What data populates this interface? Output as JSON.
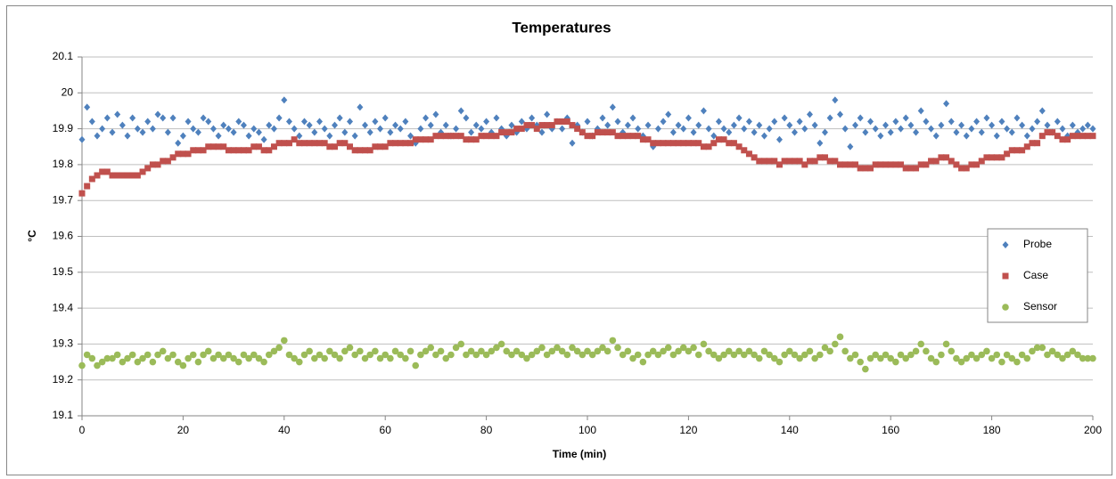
{
  "chart_data": {
    "type": "scatter",
    "title": "Temperatures",
    "x_label": "Time (min)",
    "y_label": "°C",
    "xlim": [
      0,
      200
    ],
    "xticks": [
      0,
      20,
      40,
      60,
      80,
      100,
      120,
      140,
      160,
      180,
      200
    ],
    "ylim": [
      19.1,
      20.1
    ],
    "yticks": [
      19.1,
      19.2,
      19.3,
      19.4,
      19.5,
      19.6,
      19.7,
      19.8,
      19.9,
      20,
      20.1
    ],
    "grid": true,
    "legend": "right",
    "x": [
      0,
      1,
      2,
      3,
      4,
      5,
      6,
      7,
      8,
      9,
      10,
      11,
      12,
      13,
      14,
      15,
      16,
      17,
      18,
      19,
      20,
      21,
      22,
      23,
      24,
      25,
      26,
      27,
      28,
      29,
      30,
      31,
      32,
      33,
      34,
      35,
      36,
      37,
      38,
      39,
      40,
      41,
      42,
      43,
      44,
      45,
      46,
      47,
      48,
      49,
      50,
      51,
      52,
      53,
      54,
      55,
      56,
      57,
      58,
      59,
      60,
      61,
      62,
      63,
      64,
      65,
      66,
      67,
      68,
      69,
      70,
      71,
      72,
      73,
      74,
      75,
      76,
      77,
      78,
      79,
      80,
      81,
      82,
      83,
      84,
      85,
      86,
      87,
      88,
      89,
      90,
      91,
      92,
      93,
      94,
      95,
      96,
      97,
      98,
      99,
      100,
      101,
      102,
      103,
      104,
      105,
      106,
      107,
      108,
      109,
      110,
      111,
      112,
      113,
      114,
      115,
      116,
      117,
      118,
      119,
      120,
      121,
      122,
      123,
      124,
      125,
      126,
      127,
      128,
      129,
      130,
      131,
      132,
      133,
      134,
      135,
      136,
      137,
      138,
      139,
      140,
      141,
      142,
      143,
      144,
      145,
      146,
      147,
      148,
      149,
      150,
      151,
      152,
      153,
      154,
      155,
      156,
      157,
      158,
      159,
      160,
      161,
      162,
      163,
      164,
      165,
      166,
      167,
      168,
      169,
      170,
      171,
      172,
      173,
      174,
      175,
      176,
      177,
      178,
      179,
      180,
      181,
      182,
      183,
      184,
      185,
      186,
      187,
      188,
      189,
      190,
      191,
      192,
      193,
      194,
      195,
      196,
      197,
      198,
      199,
      200
    ],
    "series": [
      {
        "name": "Probe",
        "color": "#4f81bd",
        "marker": "diamond",
        "values": [
          19.87,
          19.96,
          19.92,
          19.88,
          19.9,
          19.93,
          19.89,
          19.94,
          19.91,
          19.88,
          19.93,
          19.9,
          19.89,
          19.92,
          19.9,
          19.94,
          19.93,
          19.89,
          19.93,
          19.86,
          19.88,
          19.92,
          19.9,
          19.89,
          19.93,
          19.92,
          19.9,
          19.88,
          19.91,
          19.9,
          19.89,
          19.92,
          19.91,
          19.88,
          19.9,
          19.89,
          19.87,
          19.91,
          19.9,
          19.93,
          19.98,
          19.92,
          19.9,
          19.88,
          19.92,
          19.91,
          19.89,
          19.92,
          19.9,
          19.88,
          19.91,
          19.93,
          19.89,
          19.92,
          19.88,
          19.96,
          19.91,
          19.89,
          19.92,
          19.9,
          19.93,
          19.89,
          19.91,
          19.9,
          19.92,
          19.88,
          19.86,
          19.9,
          19.93,
          19.91,
          19.94,
          19.89,
          19.91,
          19.88,
          19.9,
          19.95,
          19.93,
          19.89,
          19.91,
          19.9,
          19.92,
          19.89,
          19.93,
          19.9,
          19.88,
          19.91,
          19.89,
          19.92,
          19.9,
          19.93,
          19.91,
          19.89,
          19.94,
          19.9,
          19.92,
          19.9,
          19.93,
          19.86,
          19.91,
          19.89,
          19.92,
          19.88,
          19.9,
          19.93,
          19.91,
          19.96,
          19.92,
          19.89,
          19.91,
          19.93,
          19.9,
          19.88,
          19.91,
          19.85,
          19.9,
          19.92,
          19.94,
          19.89,
          19.91,
          19.9,
          19.93,
          19.89,
          19.91,
          19.95,
          19.9,
          19.88,
          19.92,
          19.9,
          19.89,
          19.91,
          19.93,
          19.9,
          19.92,
          19.89,
          19.91,
          19.88,
          19.9,
          19.92,
          19.87,
          19.93,
          19.91,
          19.89,
          19.92,
          19.9,
          19.94,
          19.91,
          19.86,
          19.89,
          19.93,
          19.98,
          19.94,
          19.9,
          19.85,
          19.91,
          19.93,
          19.89,
          19.92,
          19.9,
          19.88,
          19.91,
          19.89,
          19.92,
          19.9,
          19.93,
          19.91,
          19.89,
          19.95,
          19.92,
          19.9,
          19.88,
          19.91,
          19.97,
          19.92,
          19.89,
          19.91,
          19.88,
          19.9,
          19.92,
          19.89,
          19.93,
          19.91,
          19.88,
          19.92,
          19.9,
          19.89,
          19.93,
          19.91,
          19.88,
          19.9,
          19.92,
          19.95,
          19.91,
          19.89,
          19.92,
          19.9,
          19.88,
          19.91,
          19.89,
          19.9,
          19.91,
          19.9
        ]
      },
      {
        "name": "Case",
        "color": "#c0504d",
        "marker": "square",
        "values": [
          19.72,
          19.74,
          19.76,
          19.77,
          19.78,
          19.78,
          19.77,
          19.77,
          19.77,
          19.77,
          19.77,
          19.77,
          19.78,
          19.79,
          19.8,
          19.8,
          19.81,
          19.81,
          19.82,
          19.83,
          19.83,
          19.83,
          19.84,
          19.84,
          19.84,
          19.85,
          19.85,
          19.85,
          19.85,
          19.84,
          19.84,
          19.84,
          19.84,
          19.84,
          19.85,
          19.85,
          19.84,
          19.84,
          19.85,
          19.86,
          19.86,
          19.86,
          19.87,
          19.86,
          19.86,
          19.86,
          19.86,
          19.86,
          19.86,
          19.85,
          19.85,
          19.86,
          19.86,
          19.85,
          19.84,
          19.84,
          19.84,
          19.84,
          19.85,
          19.85,
          19.85,
          19.86,
          19.86,
          19.86,
          19.86,
          19.86,
          19.87,
          19.87,
          19.87,
          19.87,
          19.88,
          19.88,
          19.88,
          19.88,
          19.88,
          19.88,
          19.87,
          19.87,
          19.87,
          19.88,
          19.88,
          19.88,
          19.88,
          19.89,
          19.89,
          19.89,
          19.9,
          19.9,
          19.91,
          19.91,
          19.9,
          19.91,
          19.91,
          19.91,
          19.92,
          19.92,
          19.92,
          19.91,
          19.9,
          19.89,
          19.88,
          19.88,
          19.89,
          19.89,
          19.89,
          19.89,
          19.88,
          19.88,
          19.88,
          19.88,
          19.88,
          19.87,
          19.87,
          19.86,
          19.86,
          19.86,
          19.86,
          19.86,
          19.86,
          19.86,
          19.86,
          19.86,
          19.86,
          19.85,
          19.85,
          19.86,
          19.87,
          19.87,
          19.86,
          19.86,
          19.85,
          19.84,
          19.83,
          19.82,
          19.81,
          19.81,
          19.81,
          19.81,
          19.8,
          19.81,
          19.81,
          19.81,
          19.81,
          19.8,
          19.81,
          19.81,
          19.82,
          19.82,
          19.81,
          19.81,
          19.8,
          19.8,
          19.8,
          19.8,
          19.79,
          19.79,
          19.79,
          19.8,
          19.8,
          19.8,
          19.8,
          19.8,
          19.8,
          19.79,
          19.79,
          19.79,
          19.8,
          19.8,
          19.81,
          19.81,
          19.82,
          19.82,
          19.81,
          19.8,
          19.79,
          19.79,
          19.8,
          19.8,
          19.81,
          19.82,
          19.82,
          19.82,
          19.82,
          19.83,
          19.84,
          19.84,
          19.84,
          19.85,
          19.86,
          19.86,
          19.88,
          19.89,
          19.89,
          19.88,
          19.87,
          19.87,
          19.88,
          19.88,
          19.88,
          19.88,
          19.88
        ]
      },
      {
        "name": "Sensor",
        "color": "#9bbb59",
        "marker": "circle",
        "values": [
          19.24,
          19.27,
          19.26,
          19.24,
          19.25,
          19.26,
          19.26,
          19.27,
          19.25,
          19.26,
          19.27,
          19.25,
          19.26,
          19.27,
          19.25,
          19.27,
          19.28,
          19.26,
          19.27,
          19.25,
          19.24,
          19.26,
          19.27,
          19.25,
          19.27,
          19.28,
          19.26,
          19.27,
          19.26,
          19.27,
          19.26,
          19.25,
          19.27,
          19.26,
          19.27,
          19.26,
          19.25,
          19.27,
          19.28,
          19.29,
          19.31,
          19.27,
          19.26,
          19.25,
          19.27,
          19.28,
          19.26,
          19.27,
          19.26,
          19.28,
          19.27,
          19.26,
          19.28,
          19.29,
          19.27,
          19.28,
          19.26,
          19.27,
          19.28,
          19.26,
          19.27,
          19.26,
          19.28,
          19.27,
          19.26,
          19.28,
          19.24,
          19.27,
          19.28,
          19.29,
          19.27,
          19.28,
          19.26,
          19.27,
          19.29,
          19.3,
          19.27,
          19.28,
          19.27,
          19.28,
          19.27,
          19.28,
          19.29,
          19.3,
          19.28,
          19.27,
          19.28,
          19.27,
          19.26,
          19.27,
          19.28,
          19.29,
          19.27,
          19.28,
          19.29,
          19.28,
          19.27,
          19.29,
          19.28,
          19.27,
          19.28,
          19.27,
          19.28,
          19.29,
          19.28,
          19.31,
          19.29,
          19.27,
          19.28,
          19.26,
          19.27,
          19.25,
          19.27,
          19.28,
          19.27,
          19.28,
          19.29,
          19.27,
          19.28,
          19.29,
          19.28,
          19.29,
          19.27,
          19.3,
          19.28,
          19.27,
          19.26,
          19.27,
          19.28,
          19.27,
          19.28,
          19.27,
          19.28,
          19.27,
          19.26,
          19.28,
          19.27,
          19.26,
          19.25,
          19.27,
          19.28,
          19.27,
          19.26,
          19.27,
          19.28,
          19.26,
          19.27,
          19.29,
          19.28,
          19.3,
          19.32,
          19.28,
          19.26,
          19.27,
          19.25,
          19.23,
          19.26,
          19.27,
          19.26,
          19.27,
          19.26,
          19.25,
          19.27,
          19.26,
          19.27,
          19.28,
          19.3,
          19.28,
          19.26,
          19.25,
          19.27,
          19.3,
          19.28,
          19.26,
          19.25,
          19.26,
          19.27,
          19.26,
          19.27,
          19.28,
          19.26,
          19.27,
          19.25,
          19.27,
          19.26,
          19.25,
          19.27,
          19.26,
          19.28,
          19.29,
          19.29,
          19.27,
          19.28,
          19.27,
          19.26,
          19.27,
          19.28,
          19.27,
          19.26,
          19.26,
          19.26
        ]
      }
    ]
  }
}
